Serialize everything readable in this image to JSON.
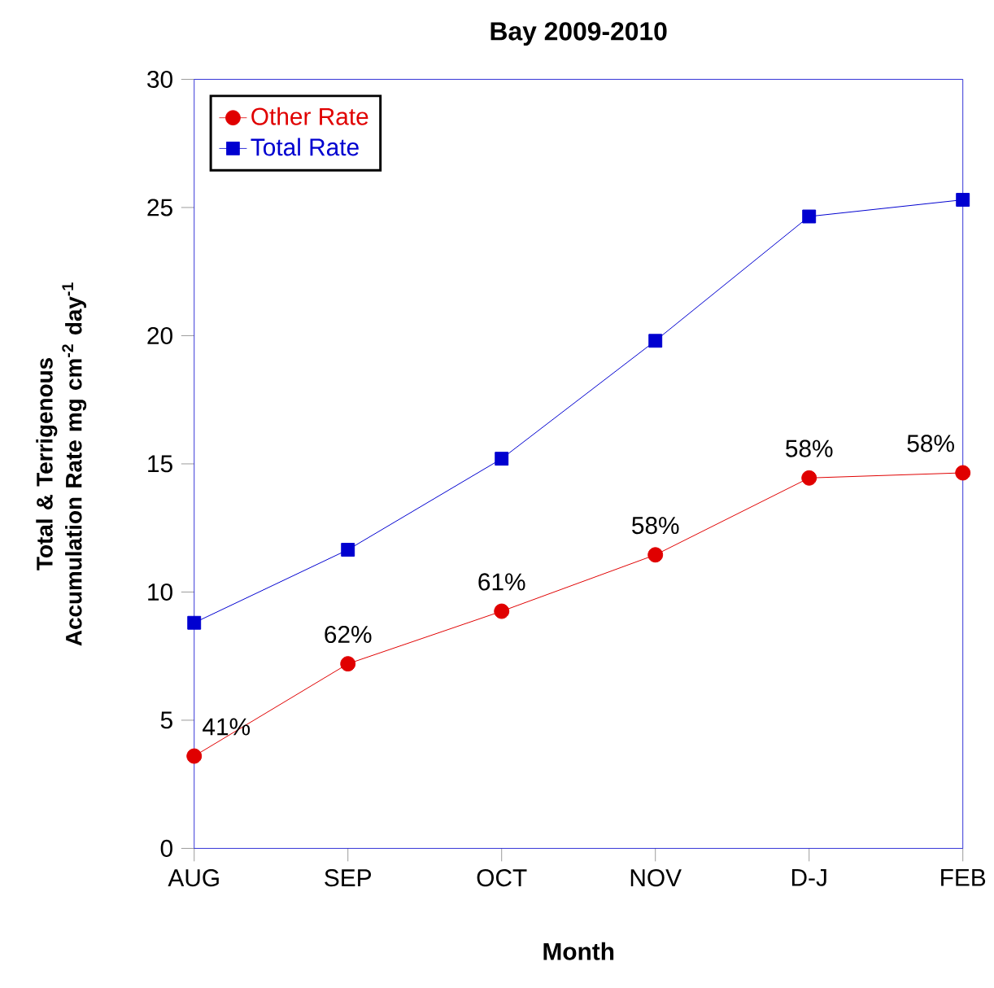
{
  "chart_data": {
    "type": "line",
    "title": "Bay 2009-2010",
    "xlabel": "Month",
    "ylabel": "Total & Terrigenous Accumulation Rate mg cm$^{-2}$ day$^{-1}$",
    "categories": [
      "AUG",
      "SEP",
      "OCT",
      "NOV",
      "D-J",
      "FEB"
    ],
    "series": [
      {
        "name": "Other Rate",
        "color": "#e00000",
        "marker": "circle",
        "values": [
          3.6,
          7.2,
          9.25,
          11.45,
          14.45,
          14.65
        ]
      },
      {
        "name": "Total Rate",
        "color": "#0000d0",
        "marker": "square",
        "values": [
          8.8,
          11.65,
          15.2,
          19.8,
          24.65,
          25.3
        ]
      }
    ],
    "ylim": [
      0,
      30
    ],
    "yticks": [
      0,
      5,
      10,
      15,
      20,
      25,
      30
    ],
    "legend": "top left",
    "annotations": [
      {
        "text": "41%",
        "x": "AUG",
        "y": 3.6
      },
      {
        "text": "62%",
        "x": "SEP",
        "y": 7.2
      },
      {
        "text": "61%",
        "x": "OCT",
        "y": 9.25
      },
      {
        "text": "58%",
        "x": "NOV",
        "y": 11.45
      },
      {
        "text": "58%",
        "x": "D-J",
        "y": 14.45
      },
      {
        "text": "58%",
        "x": "FEB",
        "y": 14.65
      }
    ]
  }
}
